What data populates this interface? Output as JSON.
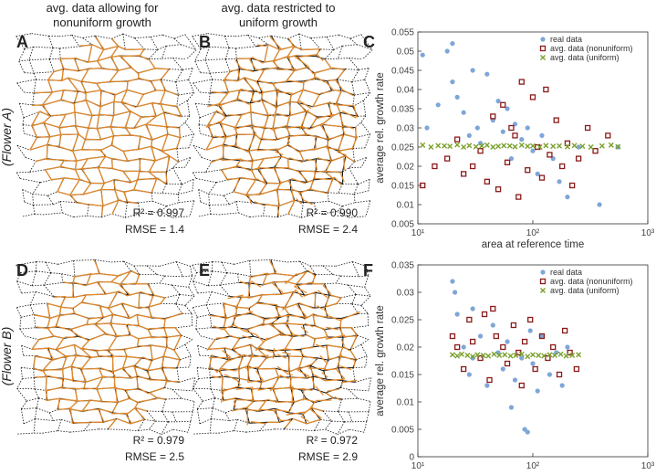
{
  "header": {
    "column_1": [
      "avg. data allowing for",
      "nonuniform growth"
    ],
    "column_2": [
      "avg. data restricted to",
      "uniform growth"
    ]
  },
  "panels": {
    "A": "A",
    "B": "B",
    "C": "C",
    "D": "D",
    "E": "E",
    "F": "F"
  },
  "rows": [
    "(Flower A)",
    "(Flower B)"
  ],
  "stats": {
    "A": [
      "R² = 0.997",
      "RMSE = 1.4"
    ],
    "B": [
      "R² = 0.990",
      "RMSE = 2.4"
    ],
    "D": [
      "R² = 0.979",
      "RMSE = 2.5"
    ],
    "E": [
      "R² = 0.972",
      "RMSE = 2.9"
    ]
  },
  "chart_data": [
    {
      "type": "scatter",
      "xlabel": "area at reference time",
      "ylabel": "average rel. growth rate",
      "xscale": "log",
      "legend": "upper right",
      "xlim": [
        10,
        1000
      ],
      "xticks": [
        {
          "value": 10,
          "label": "10¹"
        },
        {
          "value": 100,
          "label": "10²"
        },
        {
          "value": 1000,
          "label": "10³"
        }
      ],
      "ylim": [
        0.005,
        0.055
      ],
      "yticks": [
        0.005,
        0.01,
        0.015,
        0.02,
        0.025,
        0.03,
        0.035,
        0.04,
        0.045,
        0.05,
        0.055
      ],
      "series": [
        {
          "name": "real data",
          "color": "#7ea6d8",
          "x": [
            11,
            12,
            15,
            18,
            20,
            22,
            25,
            28,
            30,
            33,
            35,
            40,
            45,
            50,
            55,
            60,
            65,
            70,
            80,
            90,
            100,
            110,
            120,
            150,
            170,
            200,
            250,
            380,
            550,
            20
          ],
          "values": [
            0.049,
            0.03,
            0.036,
            0.05,
            0.052,
            0.038,
            0.034,
            0.028,
            0.045,
            0.03,
            0.026,
            0.044,
            0.032,
            0.037,
            0.029,
            0.035,
            0.022,
            0.031,
            0.027,
            0.03,
            0.024,
            0.018,
            0.028,
            0.022,
            0.016,
            0.012,
            0.025,
            0.01,
            0.025,
            0.042
          ]
        },
        {
          "name": "avg. data (nonuniform)",
          "color": "#8b1a1a",
          "x": [
            11,
            14,
            18,
            22,
            25,
            30,
            35,
            40,
            45,
            50,
            60,
            70,
            80,
            90,
            100,
            110,
            120,
            140,
            160,
            180,
            200,
            220,
            250,
            300,
            350,
            450,
            55,
            75,
            130,
            65
          ],
          "values": [
            0.015,
            0.02,
            0.022,
            0.027,
            0.018,
            0.02,
            0.024,
            0.016,
            0.033,
            0.014,
            0.021,
            0.028,
            0.042,
            0.019,
            0.038,
            0.025,
            0.017,
            0.023,
            0.032,
            0.02,
            0.026,
            0.015,
            0.022,
            0.03,
            0.024,
            0.028,
            0.036,
            0.012,
            0.04,
            0.03
          ]
        },
        {
          "name": "avg. data (uniform)",
          "color": "#7aa02c",
          "x": [
            11,
            13,
            15,
            17,
            19,
            22,
            25,
            28,
            32,
            36,
            40,
            45,
            50,
            56,
            63,
            70,
            80,
            90,
            100,
            115,
            130,
            150,
            170,
            200,
            230,
            270,
            320,
            400,
            480,
            550
          ],
          "values": [
            0.0255,
            0.025,
            0.0254,
            0.0253,
            0.0252,
            0.0256,
            0.025,
            0.0254,
            0.0251,
            0.0253,
            0.0255,
            0.025,
            0.0252,
            0.0254,
            0.0253,
            0.0251,
            0.0255,
            0.0252,
            0.0253,
            0.025,
            0.0254,
            0.0252,
            0.0253,
            0.0251,
            0.0254,
            0.0252,
            0.025,
            0.0253,
            0.0255,
            0.0251
          ]
        }
      ]
    },
    {
      "type": "scatter",
      "xlabel": "area at reference time",
      "ylabel": "average rel. growth rate",
      "xscale": "log",
      "legend": "upper right",
      "xlim": [
        10,
        1000
      ],
      "xticks": [
        {
          "value": 10,
          "label": "10¹"
        },
        {
          "value": 100,
          "label": "10²"
        },
        {
          "value": 1000,
          "label": "10³"
        }
      ],
      "ylim": [
        0,
        0.035
      ],
      "yticks": [
        0,
        0.005,
        0.01,
        0.015,
        0.02,
        0.025,
        0.03,
        0.035
      ],
      "series": [
        {
          "name": "real data",
          "color": "#7ea6d8",
          "x": [
            20,
            21,
            22,
            25,
            28,
            30,
            35,
            40,
            45,
            50,
            55,
            60,
            70,
            80,
            85,
            90,
            95,
            100,
            110,
            120,
            140,
            160,
            180,
            200,
            30,
            65
          ],
          "values": [
            0.032,
            0.03,
            0.026,
            0.02,
            0.015,
            0.018,
            0.022,
            0.013,
            0.024,
            0.019,
            0.016,
            0.021,
            0.014,
            0.018,
            0.005,
            0.0045,
            0.023,
            0.017,
            0.012,
            0.022,
            0.015,
            0.019,
            0.013,
            0.02,
            0.027,
            0.009
          ]
        },
        {
          "name": "avg. data (nonuniform)",
          "color": "#8b1a1a",
          "x": [
            20,
            22,
            25,
            28,
            30,
            35,
            38,
            42,
            48,
            55,
            60,
            68,
            75,
            85,
            95,
            105,
            120,
            135,
            150,
            170,
            190,
            210,
            240,
            45,
            80
          ],
          "values": [
            0.022,
            0.02,
            0.016,
            0.025,
            0.021,
            0.018,
            0.026,
            0.014,
            0.022,
            0.02,
            0.017,
            0.024,
            0.019,
            0.021,
            0.025,
            0.016,
            0.022,
            0.018,
            0.02,
            0.015,
            0.023,
            0.019,
            0.016,
            0.027,
            0.013
          ]
        },
        {
          "name": "avg. data (uniform)",
          "color": "#7aa02c",
          "x": [
            20,
            22,
            24,
            27,
            30,
            33,
            37,
            41,
            46,
            51,
            57,
            64,
            71,
            80,
            90,
            100,
            112,
            125,
            140,
            155,
            175,
            195,
            220,
            250
          ],
          "values": [
            0.0186,
            0.0184,
            0.0187,
            0.0185,
            0.0183,
            0.0186,
            0.0185,
            0.0184,
            0.0187,
            0.0185,
            0.0186,
            0.0184,
            0.0185,
            0.0187,
            0.0183,
            0.0186,
            0.0185,
            0.0184,
            0.0186,
            0.0185,
            0.0187,
            0.0184,
            0.0185,
            0.0186
          ]
        }
      ]
    }
  ]
}
